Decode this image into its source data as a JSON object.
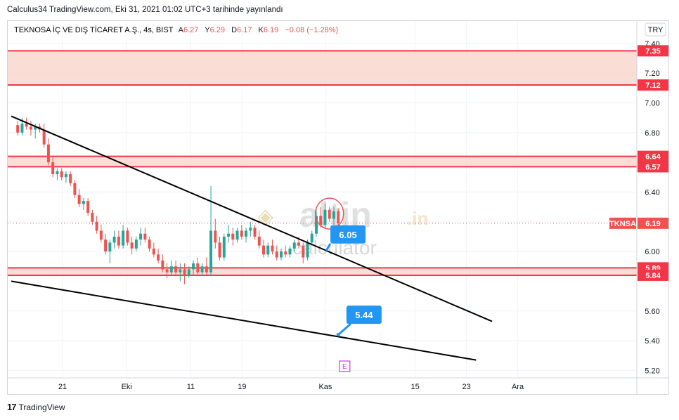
{
  "header": {
    "credit": "Calculus34 TradingView.com, Eki 31, 2021 01:02 UTC+3 tarihinde yayınlandı"
  },
  "legend": {
    "symbol": "TEKNOSA İÇ VE DIŞ TİCARET A.Ş., 4s, BIST",
    "o_label": "A",
    "o": "6.27",
    "h_label": "Y",
    "h": "6.29",
    "l_label": "D",
    "l": "6.17",
    "c_label": "K",
    "c": "6.19",
    "change": "−0.08 (−1.28%)"
  },
  "currency": "TRY",
  "footer": {
    "brand": "TradingView"
  },
  "watermark": {
    "brand": "altin",
    "tld": ".in",
    "sub": "calculator"
  },
  "earnings_marker": "E",
  "colors": {
    "up": "#26a69a",
    "down": "#ef5350",
    "zone_fill": "#f9d6cb",
    "zone_line": "#f23645",
    "callout": "#2196f3",
    "trend": "#000000",
    "grid": "#f0f3fa"
  },
  "chart_data": {
    "type": "candlestick",
    "ylim": [
      5.15,
      7.55
    ],
    "yticks": [
      "7.40",
      "7.20",
      "7.00",
      "6.80",
      "6.40",
      "6.20",
      "6.00",
      "5.60",
      "5.40",
      "5.20"
    ],
    "xlabels": [
      {
        "label": "21",
        "day": 21
      },
      {
        "label": "Eki",
        "day": 31
      },
      {
        "label": "11",
        "day": 41
      },
      {
        "label": "19",
        "day": 49
      },
      {
        "label": "Kas",
        "day": 62
      },
      {
        "label": "15",
        "day": 76
      },
      {
        "label": "23",
        "day": 84
      },
      {
        "label": "Ara",
        "day": 92
      }
    ],
    "zones": [
      {
        "top": 7.35,
        "bottom": 7.12,
        "top_label": "7.35",
        "bottom_label": "7.12"
      },
      {
        "top": 6.64,
        "bottom": 6.57,
        "top_label": "6.64",
        "bottom_label": "6.57"
      },
      {
        "top": 5.89,
        "bottom": 5.84,
        "top_label": "5.89",
        "bottom_label": "5.84"
      }
    ],
    "trendlines": [
      {
        "x1": 13.0,
        "y1": 6.91,
        "x2": 88.0,
        "y2": 5.53
      },
      {
        "x1": 13.0,
        "y1": 5.8,
        "x2": 85.5,
        "y2": 5.27
      }
    ],
    "last_price": {
      "symbol": "TKNSA",
      "value": 6.19,
      "label": "6.19"
    },
    "callouts": [
      {
        "label": "6.05",
        "x": 63.0,
        "y": 6.11
      },
      {
        "label": "5.44",
        "x": 65.5,
        "y": 5.57,
        "anchor_x": 64.0,
        "anchor_y": 5.44
      }
    ],
    "earnings_day": 65.0,
    "candles": [
      [
        6.85,
        6.88,
        6.78,
        6.8
      ],
      [
        6.8,
        6.9,
        6.78,
        6.86
      ],
      [
        6.86,
        6.9,
        6.82,
        6.84
      ],
      [
        6.84,
        6.88,
        6.78,
        6.82
      ],
      [
        6.82,
        6.86,
        6.76,
        6.84
      ],
      [
        6.84,
        6.86,
        6.8,
        6.82
      ],
      [
        6.82,
        6.86,
        6.7,
        6.72
      ],
      [
        6.72,
        6.76,
        6.58,
        6.6
      ],
      [
        6.6,
        6.64,
        6.5,
        6.52
      ],
      [
        6.52,
        6.56,
        6.48,
        6.54
      ],
      [
        6.54,
        6.56,
        6.48,
        6.5
      ],
      [
        6.5,
        6.54,
        6.46,
        6.52
      ],
      [
        6.52,
        6.54,
        6.44,
        6.46
      ],
      [
        6.46,
        6.48,
        6.36,
        6.38
      ],
      [
        6.38,
        6.42,
        6.3,
        6.32
      ],
      [
        6.32,
        6.36,
        6.28,
        6.34
      ],
      [
        6.34,
        6.36,
        6.24,
        6.26
      ],
      [
        6.26,
        6.28,
        6.18,
        6.2
      ],
      [
        6.2,
        6.24,
        6.12,
        6.14
      ],
      [
        6.14,
        6.18,
        6.06,
        6.08
      ],
      [
        6.08,
        6.12,
        5.98,
        6.0
      ],
      [
        6.0,
        6.08,
        5.92,
        6.06
      ],
      [
        6.06,
        6.14,
        6.02,
        6.1
      ],
      [
        6.1,
        6.14,
        6.02,
        6.04
      ],
      [
        6.04,
        6.18,
        6.02,
        6.14
      ],
      [
        6.14,
        6.16,
        6.04,
        6.06
      ],
      [
        6.06,
        6.1,
        5.98,
        6.02
      ],
      [
        6.02,
        6.1,
        6.0,
        6.08
      ],
      [
        6.08,
        6.16,
        6.04,
        6.12
      ],
      [
        6.12,
        6.16,
        6.06,
        6.08
      ],
      [
        6.08,
        6.1,
        6.0,
        6.02
      ],
      [
        6.02,
        6.06,
        5.96,
        5.98
      ],
      [
        5.98,
        6.02,
        5.92,
        5.94
      ],
      [
        5.94,
        5.98,
        5.86,
        5.88
      ],
      [
        5.88,
        5.92,
        5.82,
        5.86
      ],
      [
        5.86,
        5.94,
        5.84,
        5.9
      ],
      [
        5.9,
        5.94,
        5.84,
        5.86
      ],
      [
        5.86,
        5.92,
        5.8,
        5.88
      ],
      [
        5.88,
        5.92,
        5.78,
        5.84
      ],
      [
        5.84,
        5.9,
        5.82,
        5.88
      ],
      [
        5.88,
        5.94,
        5.84,
        5.92
      ],
      [
        5.92,
        5.96,
        5.84,
        5.86
      ],
      [
        5.86,
        5.92,
        5.84,
        5.9
      ],
      [
        5.9,
        5.96,
        5.84,
        5.86
      ],
      [
        5.86,
        6.44,
        5.84,
        6.14
      ],
      [
        6.14,
        6.22,
        6.02,
        6.06
      ],
      [
        6.06,
        6.1,
        5.94,
        5.96
      ],
      [
        5.96,
        6.12,
        5.94,
        6.1
      ],
      [
        6.1,
        6.18,
        6.06,
        6.12
      ],
      [
        6.12,
        6.16,
        6.04,
        6.08
      ],
      [
        6.08,
        6.16,
        6.06,
        6.14
      ],
      [
        6.14,
        6.18,
        6.08,
        6.1
      ],
      [
        6.1,
        6.16,
        6.06,
        6.14
      ],
      [
        6.14,
        6.2,
        6.1,
        6.16
      ],
      [
        6.16,
        6.18,
        6.08,
        6.1
      ],
      [
        6.1,
        6.14,
        6.02,
        6.04
      ],
      [
        6.04,
        6.08,
        5.96,
        5.98
      ],
      [
        5.98,
        6.06,
        5.96,
        6.04
      ],
      [
        6.04,
        6.08,
        5.98,
        6.0
      ],
      [
        6.0,
        6.04,
        5.94,
        5.96
      ],
      [
        5.96,
        6.02,
        5.94,
        6.0
      ],
      [
        6.0,
        6.04,
        5.96,
        5.98
      ],
      [
        5.98,
        6.04,
        5.96,
        6.02
      ],
      [
        6.02,
        6.08,
        6.0,
        6.06
      ],
      [
        6.06,
        6.1,
        6.02,
        6.04
      ],
      [
        6.04,
        6.06,
        5.92,
        5.96
      ],
      [
        5.96,
        6.08,
        5.94,
        6.06
      ],
      [
        6.06,
        6.14,
        6.04,
        6.12
      ],
      [
        6.12,
        6.28,
        6.1,
        6.24
      ],
      [
        6.24,
        6.3,
        6.16,
        6.18
      ],
      [
        6.18,
        6.32,
        6.16,
        6.28
      ],
      [
        6.28,
        6.3,
        6.2,
        6.22
      ],
      [
        6.22,
        6.3,
        6.18,
        6.27
      ],
      [
        6.27,
        6.29,
        6.17,
        6.19
      ]
    ]
  }
}
